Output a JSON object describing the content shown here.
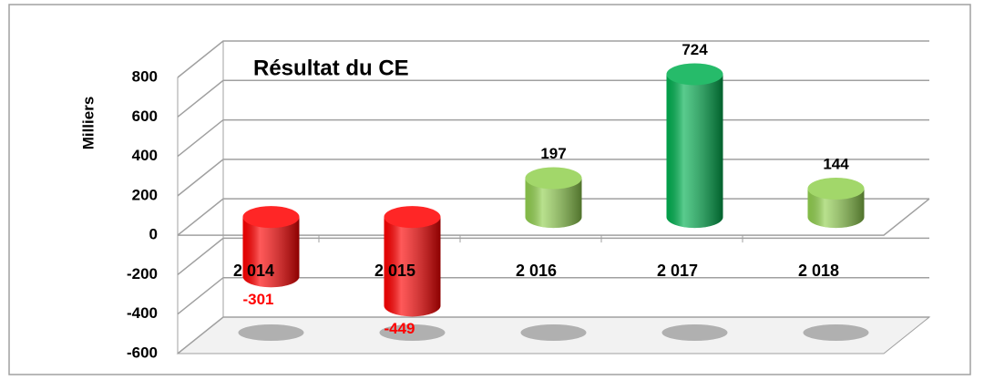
{
  "chart_data": {
    "type": "bar",
    "title": "Résultat du CE",
    "ylabel": "Milliers",
    "categories": [
      "2 014",
      "2 015",
      "2 016",
      "2 017",
      "2 018"
    ],
    "values": [
      -301,
      -449,
      197,
      724,
      144
    ],
    "colors": [
      "#ff0000",
      "#ff0000",
      "#92d050",
      "#00b050",
      "#92d050"
    ],
    "value_label_colors": [
      "#ff0000",
      "#ff0000",
      "#000000",
      "#000000",
      "#000000"
    ],
    "ylim": [
      -600,
      800
    ],
    "yticks": [
      -600,
      -400,
      -200,
      0,
      200,
      400,
      600,
      800
    ],
    "grid": true
  }
}
